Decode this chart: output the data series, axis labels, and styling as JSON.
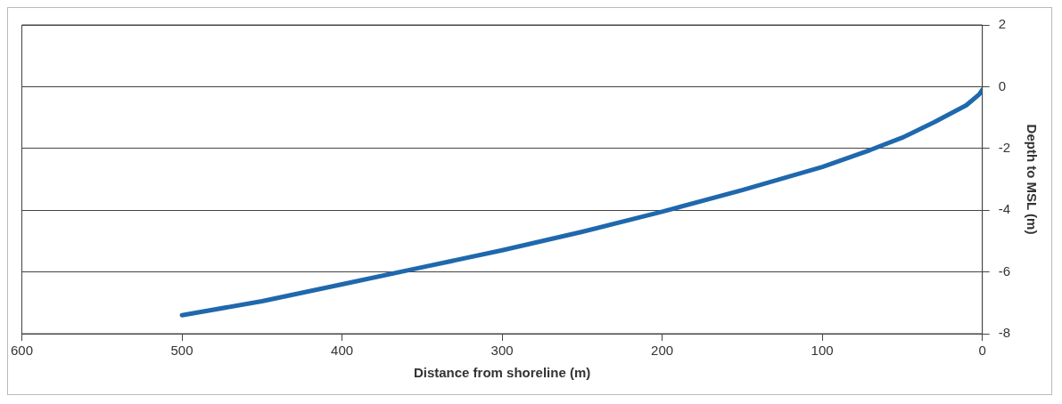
{
  "chart_data": {
    "type": "line",
    "xlabel": "Distance from shoreline (m)",
    "ylabel": "Depth to MSL (m)",
    "x": [
      500,
      450,
      400,
      350,
      300,
      250,
      200,
      150,
      100,
      70,
      50,
      30,
      10,
      2,
      0
    ],
    "series": [
      {
        "color": "#1f68ad",
        "values": [
          -7.4,
          -6.95,
          -6.4,
          -5.85,
          -5.3,
          -4.7,
          -4.05,
          -3.35,
          -2.6,
          -2.05,
          -1.65,
          -1.15,
          -0.6,
          -0.25,
          -0.1
        ]
      }
    ],
    "xlim": [
      600,
      0
    ],
    "xticks": [
      600,
      500,
      400,
      300,
      200,
      100,
      0
    ],
    "ylim": [
      -8,
      2
    ],
    "yticks": [
      -8,
      -6,
      -4,
      -2,
      0,
      2
    ],
    "grid": "y",
    "legend": false,
    "marker": "none",
    "line_style": "solid"
  }
}
